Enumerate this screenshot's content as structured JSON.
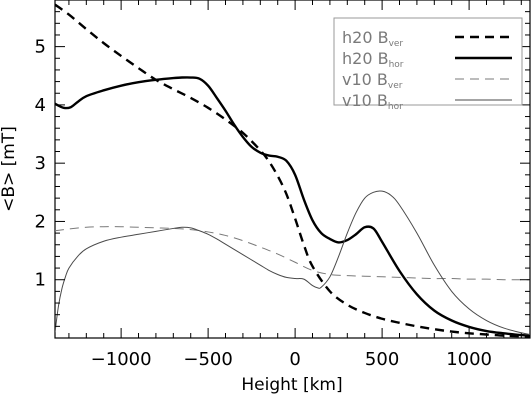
{
  "chart_data": {
    "type": "line",
    "title": "",
    "xlabel": "Height [km]",
    "ylabel": "<B> [mT]",
    "xlim": [
      -1380,
      1350
    ],
    "ylim": [
      0,
      5.8
    ],
    "xticks": [
      -1000,
      -500,
      0,
      500,
      1000
    ],
    "xtick_labels": [
      "−1000",
      "−500",
      "0",
      "500",
      "1000"
    ],
    "yticks": [
      1,
      2,
      3,
      4,
      5
    ],
    "ytick_labels": [
      "1",
      "2",
      "3",
      "4",
      "5"
    ],
    "grid": false,
    "legend_position": "top-right",
    "series": [
      {
        "name": "h20 B_ver",
        "label_main": "h20 B",
        "label_sub": "ver",
        "color": "#000000",
        "style": "dashed-thick",
        "x": [
          -1380,
          -1300,
          -1200,
          -1100,
          -1000,
          -900,
          -800,
          -700,
          -600,
          -500,
          -400,
          -300,
          -200,
          -150,
          -100,
          -50,
          0,
          50,
          100,
          200,
          300,
          400,
          500,
          600,
          700,
          800,
          900,
          1000,
          1100,
          1200,
          1300,
          1350
        ],
        "y": [
          5.72,
          5.55,
          5.3,
          5.06,
          4.84,
          4.63,
          4.43,
          4.27,
          4.12,
          3.95,
          3.75,
          3.52,
          3.22,
          3.03,
          2.78,
          2.47,
          2.05,
          1.6,
          1.23,
          0.8,
          0.57,
          0.43,
          0.33,
          0.26,
          0.2,
          0.15,
          0.11,
          0.08,
          0.06,
          0.04,
          0.03,
          0.03
        ]
      },
      {
        "name": "h20 B_hor",
        "label_main": "h20 B",
        "label_sub": "hor",
        "color": "#000000",
        "style": "solid-thick",
        "x": [
          -1380,
          -1330,
          -1290,
          -1250,
          -1200,
          -1100,
          -1000,
          -900,
          -800,
          -700,
          -650,
          -600,
          -550,
          -500,
          -450,
          -400,
          -350,
          -300,
          -250,
          -200,
          -150,
          -100,
          -50,
          0,
          50,
          100,
          150,
          200,
          250,
          300,
          350,
          400,
          450,
          500,
          600,
          700,
          800,
          900,
          1000,
          1100,
          1200,
          1300,
          1350
        ],
        "y": [
          4.02,
          3.95,
          3.96,
          4.05,
          4.15,
          4.25,
          4.33,
          4.39,
          4.43,
          4.46,
          4.47,
          4.47,
          4.45,
          4.33,
          4.12,
          3.9,
          3.66,
          3.45,
          3.28,
          3.18,
          3.13,
          3.11,
          3.04,
          2.8,
          2.38,
          2.02,
          1.8,
          1.7,
          1.64,
          1.68,
          1.78,
          1.9,
          1.88,
          1.65,
          1.15,
          0.75,
          0.47,
          0.3,
          0.19,
          0.12,
          0.08,
          0.05,
          0.04
        ]
      },
      {
        "name": "v10 B_ver",
        "label_main": "v10 B",
        "label_sub": "ver",
        "color": "#7a7a7a",
        "style": "dashed-thin",
        "x": [
          -1380,
          -1300,
          -1200,
          -1100,
          -1000,
          -900,
          -800,
          -700,
          -600,
          -500,
          -400,
          -300,
          -200,
          -100,
          0,
          100,
          200,
          300,
          400,
          500,
          600,
          700,
          800,
          900,
          1000,
          1100,
          1200,
          1300,
          1350
        ],
        "y": [
          1.84,
          1.87,
          1.9,
          1.91,
          1.91,
          1.9,
          1.89,
          1.88,
          1.86,
          1.82,
          1.76,
          1.67,
          1.56,
          1.44,
          1.3,
          1.16,
          1.09,
          1.07,
          1.06,
          1.05,
          1.04,
          1.03,
          1.02,
          1.02,
          1.01,
          1.01,
          1.0,
          1.0,
          1.0
        ]
      },
      {
        "name": "v10 B_hor",
        "label_main": "v10 B",
        "label_sub": "hor",
        "color": "#4a4a4a",
        "style": "solid-thin",
        "x": [
          -1380,
          -1360,
          -1340,
          -1320,
          -1300,
          -1250,
          -1200,
          -1100,
          -1000,
          -900,
          -800,
          -700,
          -650,
          -600,
          -550,
          -500,
          -450,
          -400,
          -350,
          -300,
          -250,
          -200,
          -150,
          -100,
          -50,
          0,
          50,
          100,
          130,
          150,
          200,
          250,
          300,
          350,
          400,
          450,
          500,
          550,
          600,
          700,
          800,
          900,
          1000,
          1100,
          1200,
          1300,
          1350
        ],
        "y": [
          0.1,
          0.55,
          0.85,
          1.05,
          1.2,
          1.4,
          1.53,
          1.66,
          1.73,
          1.78,
          1.83,
          1.88,
          1.9,
          1.89,
          1.84,
          1.78,
          1.7,
          1.61,
          1.52,
          1.43,
          1.34,
          1.25,
          1.16,
          1.09,
          1.04,
          1.02,
          1.01,
          0.9,
          0.86,
          0.87,
          1.05,
          1.4,
          1.8,
          2.15,
          2.4,
          2.5,
          2.52,
          2.45,
          2.28,
          1.8,
          1.25,
          0.8,
          0.5,
          0.3,
          0.17,
          0.09,
          0.06
        ]
      }
    ]
  }
}
